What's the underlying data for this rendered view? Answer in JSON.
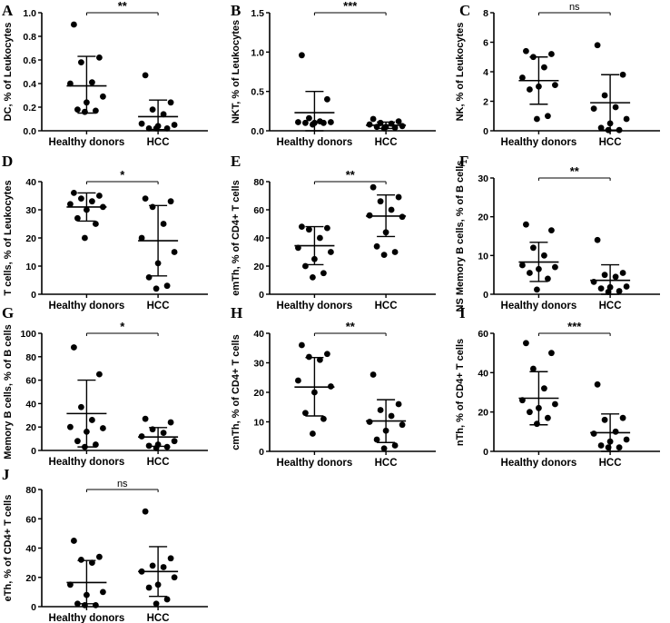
{
  "chart_data": [
    {
      "type": "scatter",
      "letter": "A",
      "ylabel": "DC, % of Leukocytes",
      "ylim": [
        0,
        1.0
      ],
      "ticks": [
        0,
        0.2,
        0.4,
        0.6,
        0.8,
        1.0
      ],
      "tick_labels": [
        "0.0",
        "0.2",
        "0.4",
        "0.6",
        "0.8",
        "1.0"
      ],
      "categories": [
        "Healthy donors",
        "HCC"
      ],
      "significance": "**",
      "series": [
        {
          "name": "Healthy donors",
          "mean": 0.38,
          "sd": [
            0.15,
            0.63
          ],
          "values": [
            0.9,
            0.62,
            0.58,
            0.41,
            0.4,
            0.29,
            0.24,
            0.18,
            0.17,
            0.16
          ]
        },
        {
          "name": "HCC",
          "mean": 0.12,
          "sd": [
            0.01,
            0.26
          ],
          "values": [
            0.47,
            0.24,
            0.18,
            0.14,
            0.06,
            0.05,
            0.04,
            0.02,
            0.02,
            0.02
          ]
        }
      ]
    },
    {
      "type": "scatter",
      "letter": "B",
      "ylabel": "NKT, % of Leukocytes",
      "ylim": [
        0,
        1.5
      ],
      "ticks": [
        0,
        0.5,
        1.0,
        1.5
      ],
      "tick_labels": [
        "0.0",
        "0.5",
        "1.0",
        "1.5"
      ],
      "categories": [
        "Healthy donors",
        "HCC"
      ],
      "significance": "***",
      "series": [
        {
          "name": "Healthy donors",
          "mean": 0.23,
          "sd": [
            0.0,
            0.5
          ],
          "values": [
            0.96,
            0.4,
            0.16,
            0.12,
            0.11,
            0.11,
            0.1,
            0.1,
            0.1,
            0.08
          ]
        },
        {
          "name": "HCC",
          "mean": 0.07,
          "sd": [
            0.03,
            0.11
          ],
          "values": [
            0.15,
            0.12,
            0.1,
            0.09,
            0.08,
            0.06,
            0.05,
            0.05,
            0.04,
            0.03
          ]
        }
      ]
    },
    {
      "type": "scatter",
      "letter": "C",
      "ylabel": "NK, % of Leukocytes",
      "ylim": [
        0,
        8
      ],
      "ticks": [
        0,
        2,
        4,
        6,
        8
      ],
      "tick_labels": [
        "0",
        "2",
        "4",
        "6",
        "8"
      ],
      "categories": [
        "Healthy donors",
        "HCC"
      ],
      "significance": "ns",
      "series": [
        {
          "name": "Healthy donors",
          "mean": 3.4,
          "sd": [
            1.8,
            5.0
          ],
          "values": [
            5.4,
            5.2,
            5.0,
            4.3,
            3.6,
            3.1,
            3.0,
            2.8,
            1.0,
            0.8
          ]
        },
        {
          "name": "HCC",
          "mean": 1.9,
          "sd": [
            0.05,
            3.8
          ],
          "values": [
            5.8,
            3.8,
            2.4,
            1.6,
            1.5,
            0.8,
            0.5,
            0.2,
            0.05,
            0.05
          ]
        }
      ]
    },
    {
      "type": "scatter",
      "letter": "D",
      "ylabel": "T cells, % of Leukocytes",
      "ylim": [
        0,
        40
      ],
      "ticks": [
        0,
        10,
        20,
        30,
        40
      ],
      "tick_labels": [
        "0",
        "10",
        "20",
        "30",
        "40"
      ],
      "categories": [
        "Healthy donors",
        "HCC"
      ],
      "significance": "*",
      "series": [
        {
          "name": "Healthy donors",
          "mean": 31,
          "sd": [
            26,
            36
          ],
          "values": [
            36,
            35,
            34,
            33,
            32,
            31,
            30,
            27,
            25,
            20
          ]
        },
        {
          "name": "HCC",
          "mean": 19,
          "sd": [
            6.5,
            31.5
          ],
          "values": [
            34,
            33,
            31,
            25,
            20,
            15,
            11,
            6,
            3,
            2
          ]
        }
      ]
    },
    {
      "type": "scatter",
      "letter": "E",
      "ylabel": "emTh, % of CD4+ T cells",
      "ylim": [
        0,
        80
      ],
      "ticks": [
        0,
        20,
        40,
        60,
        80
      ],
      "tick_labels": [
        "0",
        "20",
        "40",
        "60",
        "80"
      ],
      "categories": [
        "Healthy donors",
        "HCC"
      ],
      "significance": "**",
      "series": [
        {
          "name": "Healthy donors",
          "mean": 34.5,
          "sd": [
            21,
            48
          ],
          "values": [
            48,
            47,
            46,
            40,
            33,
            30,
            25,
            20,
            15,
            12
          ]
        },
        {
          "name": "HCC",
          "mean": 55.5,
          "sd": [
            41,
            70.5
          ],
          "values": [
            76,
            69,
            66,
            60,
            56,
            55,
            44,
            34,
            30,
            28
          ]
        }
      ]
    },
    {
      "type": "scatter",
      "letter": "F",
      "ylabel": "NS Memory B cells, % of B cells",
      "ylim": [
        0,
        30
      ],
      "ticks": [
        0,
        10,
        20,
        30
      ],
      "tick_labels": [
        "0",
        "10",
        "20",
        "30"
      ],
      "categories": [
        "Healthy donors",
        "HCC"
      ],
      "significance": "**",
      "series": [
        {
          "name": "Healthy donors",
          "mean": 8.3,
          "sd": [
            3.3,
            13.4
          ],
          "values": [
            18,
            16.5,
            12,
            10,
            7.5,
            7,
            6.5,
            5.5,
            4,
            1.2
          ]
        },
        {
          "name": "HCC",
          "mean": 3.6,
          "sd": [
            0,
            7.6
          ],
          "values": [
            14,
            5.5,
            5,
            4.5,
            3.2,
            2,
            1.8,
            1.5,
            0.8,
            0.6
          ]
        }
      ]
    },
    {
      "type": "scatter",
      "letter": "G",
      "ylabel": "Memory B cells, % of B cells",
      "ylim": [
        0,
        100
      ],
      "ticks": [
        0,
        20,
        40,
        60,
        80,
        100
      ],
      "tick_labels": [
        "0",
        "20",
        "40",
        "60",
        "80",
        "100"
      ],
      "categories": [
        "Healthy donors",
        "HCC"
      ],
      "significance": "*",
      "series": [
        {
          "name": "Healthy donors",
          "mean": 31.5,
          "sd": [
            3,
            60
          ],
          "values": [
            88,
            65,
            37,
            26,
            20,
            19,
            16,
            8,
            5,
            3
          ]
        },
        {
          "name": "HCC",
          "mean": 11.5,
          "sd": [
            3.5,
            19.5
          ],
          "values": [
            27,
            24,
            18,
            15,
            12,
            8,
            5,
            4,
            3,
            2
          ]
        }
      ]
    },
    {
      "type": "scatter",
      "letter": "H",
      "ylabel": "cmTh, % of CD4+ T cells",
      "ylim": [
        0,
        40
      ],
      "ticks": [
        0,
        10,
        20,
        30,
        40
      ],
      "tick_labels": [
        "0",
        "10",
        "20",
        "30",
        "40"
      ],
      "categories": [
        "Healthy donors",
        "HCC"
      ],
      "significance": "**",
      "series": [
        {
          "name": "Healthy donors",
          "mean": 21.8,
          "sd": [
            12,
            31.8
          ],
          "values": [
            36,
            33,
            32,
            31,
            24,
            22,
            20,
            13,
            11,
            6
          ]
        },
        {
          "name": "HCC",
          "mean": 10.3,
          "sd": [
            3,
            17.5
          ],
          "values": [
            26,
            16,
            14,
            12,
            10,
            9,
            7,
            4,
            2,
            1
          ]
        }
      ]
    },
    {
      "type": "scatter",
      "letter": "I",
      "ylabel": "nTh, % of CD4+ T cells",
      "ylim": [
        0,
        60
      ],
      "ticks": [
        0,
        20,
        40,
        60
      ],
      "tick_labels": [
        "0",
        "20",
        "40",
        "60"
      ],
      "categories": [
        "Healthy donors",
        "HCC"
      ],
      "significance": "***",
      "series": [
        {
          "name": "Healthy donors",
          "mean": 27,
          "sd": [
            13.5,
            40.5
          ],
          "values": [
            55,
            50,
            42,
            32,
            26,
            24,
            22,
            20,
            17,
            14
          ]
        },
        {
          "name": "HCC",
          "mean": 9.5,
          "sd": [
            0,
            19
          ],
          "values": [
            34,
            17,
            16,
            10,
            9,
            6,
            5,
            3,
            2,
            2
          ]
        }
      ]
    },
    {
      "type": "scatter",
      "letter": "J",
      "ylabel": "eTh, % of CD4+ T cells",
      "ylim": [
        0,
        80
      ],
      "ticks": [
        0,
        20,
        40,
        60,
        80
      ],
      "tick_labels": [
        "0",
        "20",
        "40",
        "60",
        "80"
      ],
      "categories": [
        "Healthy donors",
        "HCC"
      ],
      "significance": "ns",
      "series": [
        {
          "name": "Healthy donors",
          "mean": 16.5,
          "sd": [
            2,
            31.5
          ],
          "values": [
            45,
            34,
            32,
            30,
            15,
            10,
            8,
            2,
            1,
            1
          ]
        },
        {
          "name": "HCC",
          "mean": 24,
          "sd": [
            7,
            41
          ],
          "values": [
            65,
            33,
            28,
            27,
            24,
            20,
            15,
            13,
            5,
            2
          ]
        }
      ]
    }
  ]
}
